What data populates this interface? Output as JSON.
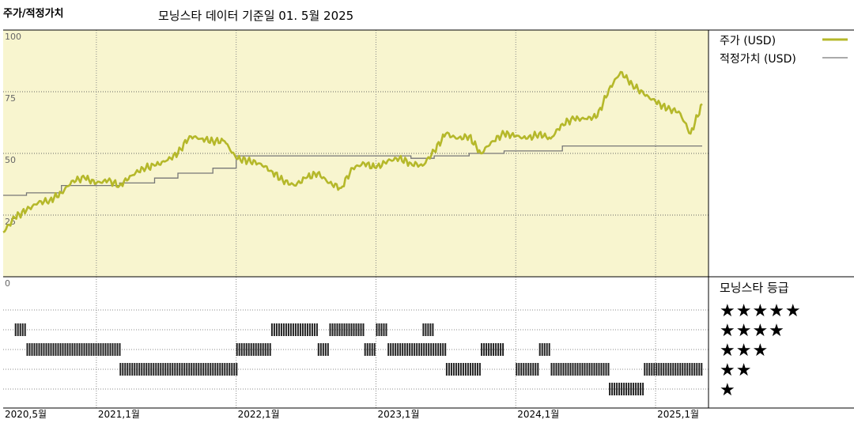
{
  "header": {
    "title": "주가/적정가치",
    "subtitle": "모닝스타 데이터 기준일 01. 5월 2025"
  },
  "legend": {
    "price_label": "주가 (USD)",
    "fair_value_label": "적정가치 (USD)",
    "rating_title": "모닝스타 등급"
  },
  "colors": {
    "price_line": "#b5b82a",
    "fair_value_line": "#777777",
    "plot_bg": "#f8f5cf",
    "bars": "#222222"
  },
  "chart_data": {
    "type": "line",
    "ylim": [
      0,
      100
    ],
    "y_ticks": [
      "0",
      "25",
      "50",
      "75",
      "100"
    ],
    "x_tick_labels": [
      "2020,5월",
      "2021,1월",
      "2022,1월",
      "2023,1월",
      "2024,1월",
      "2025,1월"
    ],
    "x_tick_dates": [
      "2020-05",
      "2021-01",
      "2022-01",
      "2023-01",
      "2024-01",
      "2025-01"
    ],
    "x_range": [
      "2020-05",
      "2025-05"
    ],
    "grid": true,
    "series": [
      {
        "name": "주가 (USD)",
        "points": [
          [
            "2020-05",
            18
          ],
          [
            "2020-06",
            24
          ],
          [
            "2020-07",
            27
          ],
          [
            "2020-08",
            30
          ],
          [
            "2020-09",
            31
          ],
          [
            "2020-10",
            34
          ],
          [
            "2020-11",
            39
          ],
          [
            "2020-12",
            40
          ],
          [
            "2021-01",
            38
          ],
          [
            "2021-02",
            39
          ],
          [
            "2021-03",
            37
          ],
          [
            "2021-04",
            41
          ],
          [
            "2021-05",
            44
          ],
          [
            "2021-06",
            45
          ],
          [
            "2021-07",
            47
          ],
          [
            "2021-08",
            50
          ],
          [
            "2021-09",
            57
          ],
          [
            "2021-10",
            56
          ],
          [
            "2021-11",
            55
          ],
          [
            "2021-12",
            55
          ],
          [
            "2022-01",
            48
          ],
          [
            "2022-02",
            47
          ],
          [
            "2022-03",
            46
          ],
          [
            "2022-04",
            43
          ],
          [
            "2022-05",
            39
          ],
          [
            "2022-06",
            37
          ],
          [
            "2022-07",
            40
          ],
          [
            "2022-08",
            42
          ],
          [
            "2022-09",
            38
          ],
          [
            "2022-10",
            36
          ],
          [
            "2022-11",
            44
          ],
          [
            "2022-12",
            46
          ],
          [
            "2023-01",
            44
          ],
          [
            "2023-02",
            47
          ],
          [
            "2023-03",
            48
          ],
          [
            "2023-04",
            46
          ],
          [
            "2023-05",
            45
          ],
          [
            "2023-06",
            51
          ],
          [
            "2023-07",
            58
          ],
          [
            "2023-08",
            56
          ],
          [
            "2023-09",
            57
          ],
          [
            "2023-10",
            50
          ],
          [
            "2023-11",
            55
          ],
          [
            "2023-12",
            58
          ],
          [
            "2024-01",
            57
          ],
          [
            "2024-02",
            56
          ],
          [
            "2024-03",
            58
          ],
          [
            "2024-04",
            56
          ],
          [
            "2024-05",
            62
          ],
          [
            "2024-06",
            64
          ],
          [
            "2024-07",
            64
          ],
          [
            "2024-08",
            65
          ],
          [
            "2024-09",
            76
          ],
          [
            "2024-10",
            83
          ],
          [
            "2024-11",
            78
          ],
          [
            "2024-12",
            74
          ],
          [
            "2025-01",
            71
          ],
          [
            "2025-02",
            68
          ],
          [
            "2025-03",
            67
          ],
          [
            "2025-04",
            58
          ],
          [
            "2025-05",
            70
          ]
        ]
      },
      {
        "name": "적정가치 (USD)",
        "steps": [
          [
            "2020-05",
            33
          ],
          [
            "2020-07",
            34
          ],
          [
            "2020-10",
            37
          ],
          [
            "2021-03",
            38
          ],
          [
            "2021-06",
            40
          ],
          [
            "2021-08",
            42
          ],
          [
            "2021-11",
            44
          ],
          [
            "2022-01",
            49
          ],
          [
            "2022-09",
            49
          ],
          [
            "2023-04",
            48
          ],
          [
            "2023-06",
            49
          ],
          [
            "2023-09",
            50
          ],
          [
            "2023-12",
            51
          ],
          [
            "2024-05",
            53
          ],
          [
            "2025-05",
            53
          ]
        ]
      }
    ],
    "rating": {
      "levels": [
        "★★★★★",
        "★★★★",
        "★★★",
        "★★",
        "★"
      ],
      "periods": [
        {
          "stars": 4,
          "start": "2020-06",
          "end": "2020-07"
        },
        {
          "stars": 3,
          "start": "2020-07",
          "end": "2021-03"
        },
        {
          "stars": 2,
          "start": "2021-03",
          "end": "2022-01"
        },
        {
          "stars": 3,
          "start": "2022-01",
          "end": "2022-04"
        },
        {
          "stars": 4,
          "start": "2022-04",
          "end": "2022-08"
        },
        {
          "stars": 3,
          "start": "2022-08",
          "end": "2022-09"
        },
        {
          "stars": 4,
          "start": "2022-09",
          "end": "2022-12"
        },
        {
          "stars": 3,
          "start": "2022-12",
          "end": "2023-01"
        },
        {
          "stars": 4,
          "start": "2023-01",
          "end": "2023-02"
        },
        {
          "stars": 3,
          "start": "2023-02",
          "end": "2023-07"
        },
        {
          "stars": 4,
          "start": "2023-05",
          "end": "2023-06"
        },
        {
          "stars": 2,
          "start": "2023-07",
          "end": "2023-10"
        },
        {
          "stars": 3,
          "start": "2023-10",
          "end": "2023-12"
        },
        {
          "stars": 2,
          "start": "2024-01",
          "end": "2024-03"
        },
        {
          "stars": 3,
          "start": "2024-03",
          "end": "2024-04"
        },
        {
          "stars": 2,
          "start": "2024-04",
          "end": "2024-09"
        },
        {
          "stars": 1,
          "start": "2024-09",
          "end": "2024-12"
        },
        {
          "stars": 2,
          "start": "2024-12",
          "end": "2025-05"
        }
      ]
    }
  }
}
